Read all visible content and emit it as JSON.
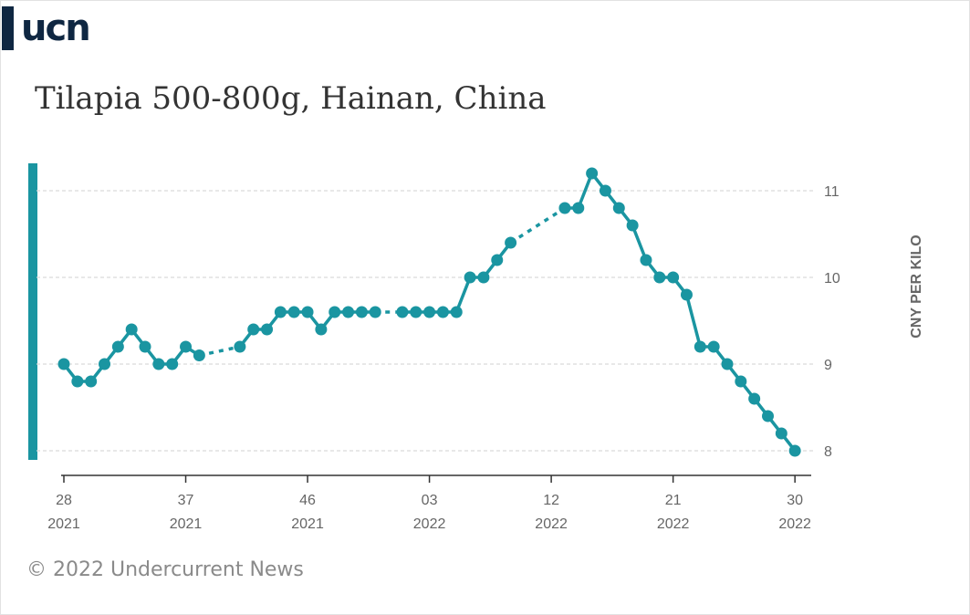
{
  "brand": {
    "logo_text": "ucn",
    "logo_color": "#0f2742"
  },
  "footer": "© 2022 Undercurrent News",
  "colors": {
    "series": "#1a95a1",
    "grid": "#d9d9d9",
    "axis_text": "#666666",
    "axis": "#333333"
  },
  "chart_data": {
    "type": "line",
    "title": "Tilapia 500-800g, Hainan, China",
    "ylabel": "CNY PER KILO",
    "xlabel": "",
    "ylim": [
      7.9,
      11.25
    ],
    "y_ticks": [
      8,
      9,
      10,
      11
    ],
    "x_range": [
      0,
      55
    ],
    "x_ticks": [
      {
        "x": 0,
        "week": "28",
        "year": "2021"
      },
      {
        "x": 9,
        "week": "37",
        "year": "2021"
      },
      {
        "x": 18,
        "week": "46",
        "year": "2021"
      },
      {
        "x": 27,
        "week": "03",
        "year": "2022"
      },
      {
        "x": 36,
        "week": "12",
        "year": "2022"
      },
      {
        "x": 45,
        "week": "21",
        "year": "2022"
      },
      {
        "x": 54,
        "week": "30",
        "year": "2022"
      }
    ],
    "grid": true,
    "series": [
      {
        "points": [
          [
            0,
            9.0
          ],
          [
            1,
            8.8
          ],
          [
            2,
            8.8
          ],
          [
            3,
            9.0
          ],
          [
            4,
            9.2
          ],
          [
            5,
            9.4
          ],
          [
            6,
            9.2
          ],
          [
            7,
            9.0
          ],
          [
            8,
            9.0
          ],
          [
            9,
            9.2
          ],
          [
            10,
            9.1
          ],
          [
            13,
            9.2
          ],
          [
            14,
            9.4
          ],
          [
            15,
            9.4
          ],
          [
            16,
            9.6
          ],
          [
            17,
            9.6
          ],
          [
            18,
            9.6
          ],
          [
            19,
            9.4
          ],
          [
            20,
            9.6
          ],
          [
            21,
            9.6
          ],
          [
            22,
            9.6
          ],
          [
            23,
            9.6
          ],
          [
            25,
            9.6
          ],
          [
            26,
            9.6
          ],
          [
            27,
            9.6
          ],
          [
            28,
            9.6
          ],
          [
            29,
            9.6
          ],
          [
            30,
            10.0
          ],
          [
            31,
            10.0
          ],
          [
            32,
            10.2
          ],
          [
            33,
            10.4
          ],
          [
            37,
            10.8
          ],
          [
            38,
            10.8
          ],
          [
            39,
            11.2
          ],
          [
            40,
            11.0
          ],
          [
            41,
            10.8
          ],
          [
            42,
            10.6
          ],
          [
            43,
            10.2
          ],
          [
            44,
            10.0
          ],
          [
            45,
            10.0
          ],
          [
            46,
            9.8
          ],
          [
            47,
            9.2
          ],
          [
            48,
            9.2
          ],
          [
            49,
            9.0
          ],
          [
            50,
            8.8
          ],
          [
            51,
            8.6
          ],
          [
            52,
            8.4
          ],
          [
            53,
            8.2
          ],
          [
            54,
            8.0
          ]
        ]
      }
    ]
  }
}
